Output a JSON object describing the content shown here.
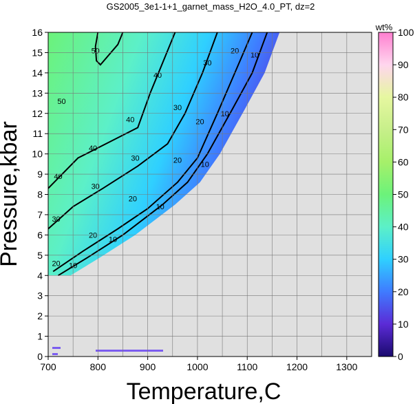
{
  "chart_data": {
    "type": "heatmap",
    "title": "GS2005_3e1-1+1_garnet_mass_H2O_4.0_PT, dz=2",
    "xlabel": "Temperature,C",
    "ylabel": "Pressure,kbar",
    "xlim": [
      700,
      1350
    ],
    "ylim": [
      0,
      16
    ],
    "x_ticks": [
      700,
      800,
      900,
      1000,
      1100,
      1200,
      1300
    ],
    "y_ticks": [
      0,
      1,
      2,
      3,
      4,
      5,
      6,
      7,
      8,
      9,
      10,
      11,
      12,
      13,
      14,
      15,
      16
    ],
    "grid": true,
    "colorbar": {
      "label": "wt%",
      "range": [
        0,
        100
      ],
      "ticks": [
        0,
        10,
        20,
        30,
        40,
        50,
        60,
        70,
        80,
        90,
        100
      ],
      "colors": [
        "#1a0a6e",
        "#5b2bd6",
        "#3f7bff",
        "#2fd0ff",
        "#5cf0c8",
        "#6cf27a",
        "#a6f06a",
        "#c7ef8a",
        "#e6f7a0",
        "#ffd6ee",
        "#ff7fd0"
      ]
    },
    "no_data_color": "#e0e0e0",
    "contours": [
      {
        "level": 10,
        "points": [
          [
            720,
            4.0
          ],
          [
            780,
            4.9
          ],
          [
            850,
            6.0
          ],
          [
            930,
            7.5
          ],
          [
            980,
            8.6
          ],
          [
            1020,
            10.0
          ],
          [
            1070,
            12.2
          ],
          [
            1110,
            14.0
          ],
          [
            1140,
            16.0
          ]
        ],
        "labels": [
          [
            750,
            4.5
          ],
          [
            830,
            5.8
          ],
          [
            925,
            7.4
          ],
          [
            1015,
            9.5
          ],
          [
            1055,
            12.0
          ],
          [
            1115,
            14.9
          ]
        ]
      },
      {
        "level": 20,
        "points": [
          [
            710,
            4.2
          ],
          [
            770,
            5.2
          ],
          [
            840,
            6.3
          ],
          [
            900,
            7.3
          ],
          [
            960,
            8.6
          ],
          [
            1000,
            9.8
          ],
          [
            1040,
            12.0
          ],
          [
            1075,
            14.0
          ],
          [
            1110,
            16.0
          ]
        ],
        "labels": [
          [
            716,
            4.6
          ],
          [
            790,
            6.0
          ],
          [
            870,
            7.8
          ],
          [
            960,
            9.7
          ],
          [
            1005,
            11.6
          ],
          [
            1075,
            15.1
          ]
        ]
      },
      {
        "level": 30,
        "points": [
          [
            700,
            6.3
          ],
          [
            750,
            7.4
          ],
          [
            810,
            8.3
          ],
          [
            880,
            9.4
          ],
          [
            940,
            10.5
          ],
          [
            975,
            12.0
          ],
          [
            1010,
            14.0
          ],
          [
            1040,
            16.0
          ]
        ],
        "labels": [
          [
            716,
            6.8
          ],
          [
            795,
            8.4
          ],
          [
            875,
            9.8
          ],
          [
            960,
            12.3
          ],
          [
            1020,
            14.5
          ]
        ]
      },
      {
        "level": 40,
        "points": [
          [
            700,
            8.3
          ],
          [
            760,
            9.8
          ],
          [
            840,
            10.8
          ],
          [
            880,
            11.3
          ],
          [
            905,
            13.0
          ],
          [
            930,
            14.5
          ],
          [
            955,
            16.0
          ]
        ],
        "labels": [
          [
            720,
            8.9
          ],
          [
            790,
            10.3
          ],
          [
            865,
            11.7
          ],
          [
            920,
            13.9
          ]
        ]
      },
      {
        "level": 50,
        "points": [
          [
            800,
            16.0
          ],
          [
            795,
            15.3
          ],
          [
            797,
            14.6
          ],
          [
            805,
            14.4
          ],
          [
            840,
            15.4
          ],
          [
            850,
            16.0
          ]
        ],
        "labels": [
          [
            795,
            15.1
          ],
          [
            727,
            12.6
          ]
        ]
      }
    ]
  }
}
